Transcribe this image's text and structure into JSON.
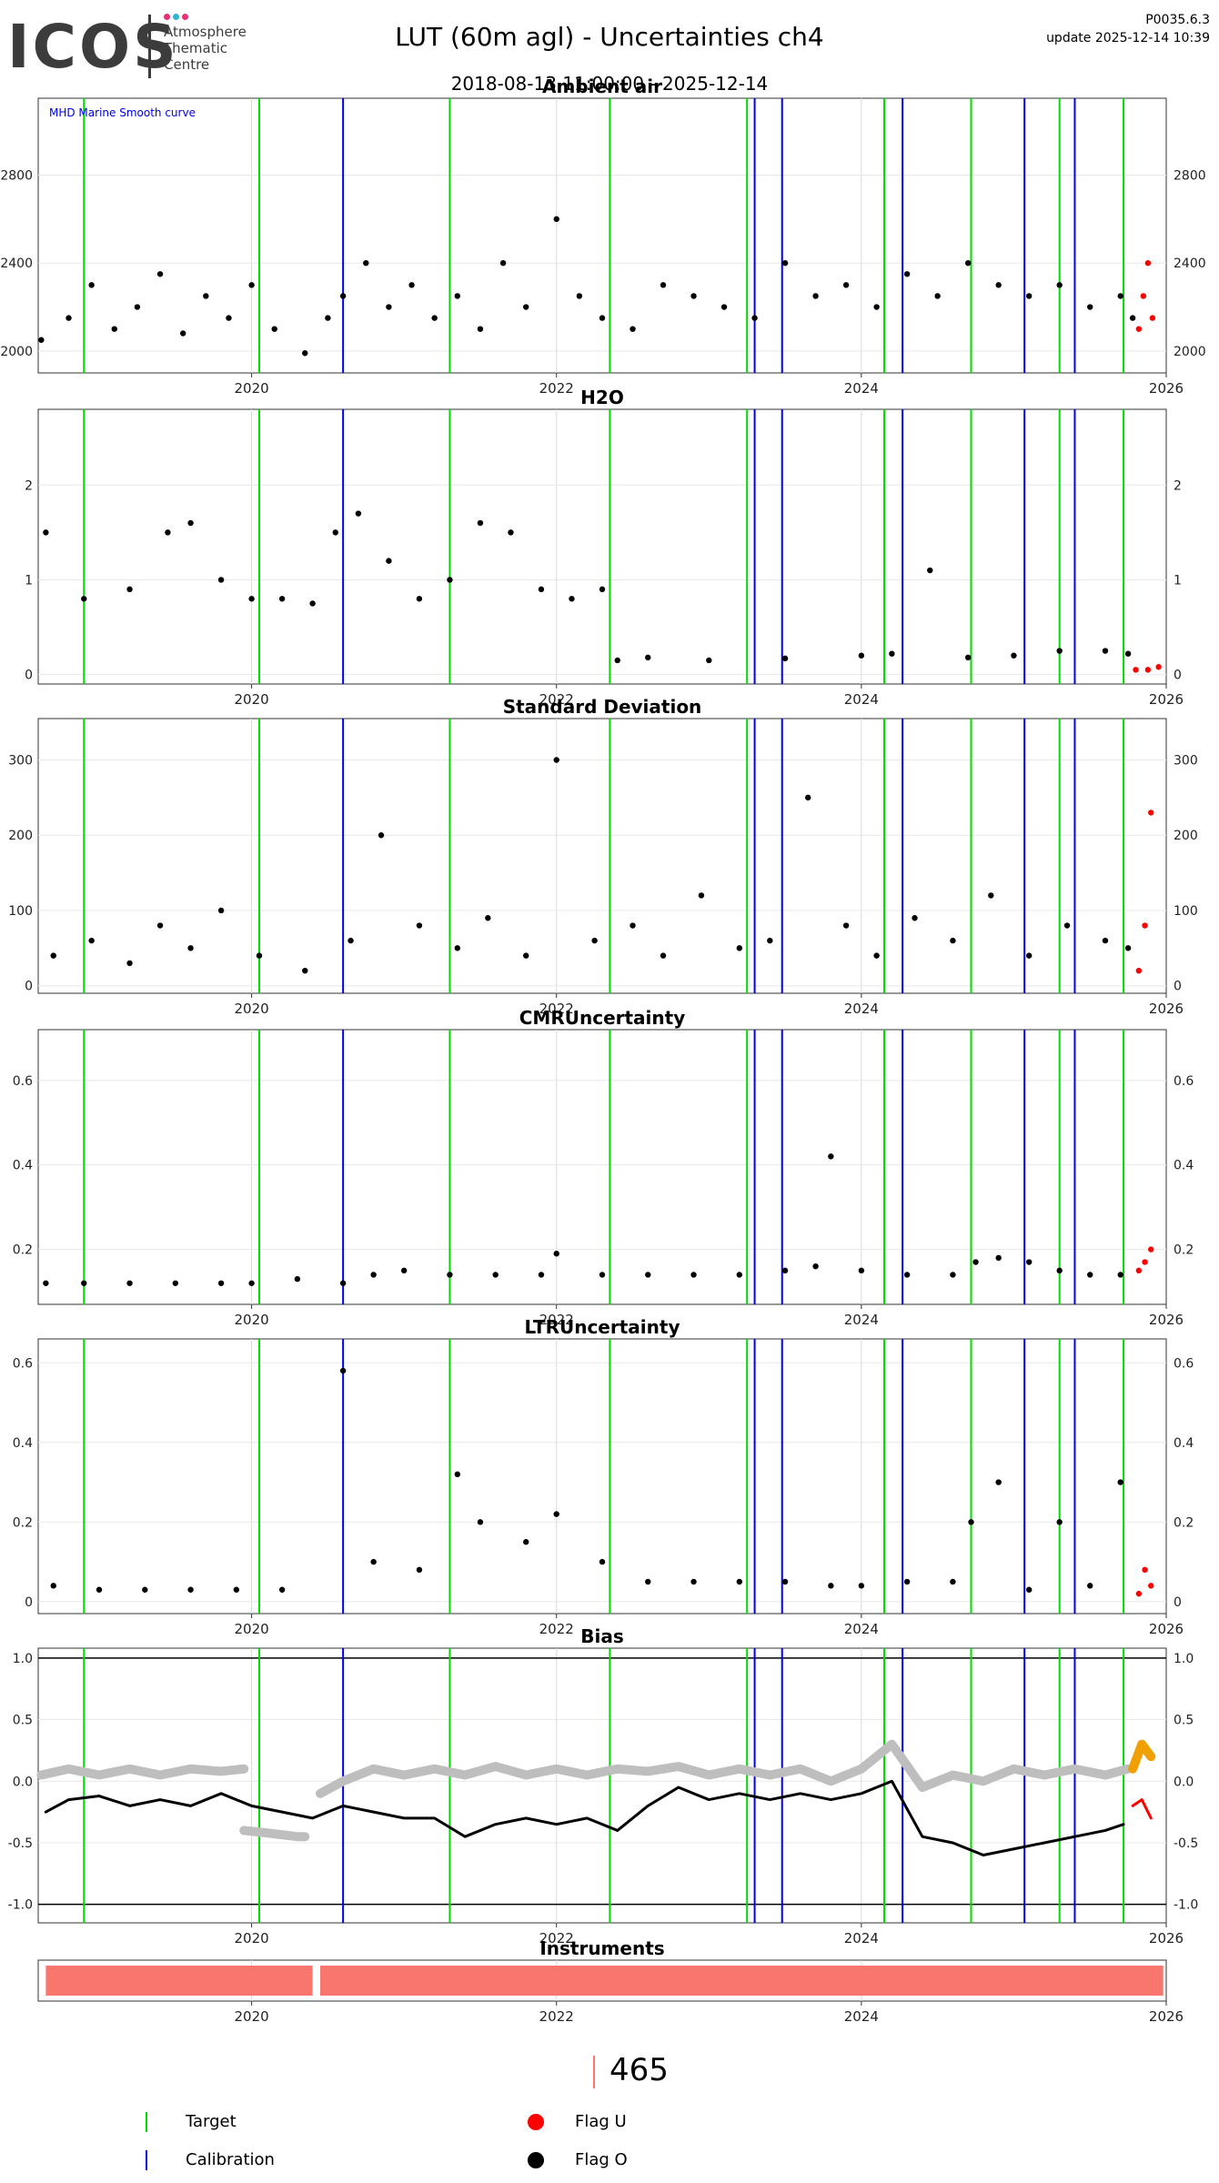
{
  "header": {
    "logo_text": "ICOS",
    "logo_sub": [
      "Atmosphere",
      "Thematic",
      "Centre"
    ],
    "logo_dot_colors": [
      "#e8317a",
      "#2fb5d2",
      "#e8317a"
    ],
    "title": "LUT  (60m agl) - Uncertainties ch4",
    "date_range": "2018-08-13 11:00:00 - 2025-12-14",
    "version": "P0035.6.3",
    "update": "update  2025-12-14 10:39"
  },
  "colors": {
    "target": "#00dd00",
    "calibration": "#0000ee",
    "flag_u": "#ff0000",
    "flag_o": "#000000",
    "smooth": "#bebebe",
    "smooth_recent": "#f0a000",
    "instrument": "#f8766d"
  },
  "events": {
    "target": [
      2018.9,
      2020.05,
      2021.3,
      2022.35,
      2023.25,
      2024.15,
      2024.72,
      2025.3,
      2025.72
    ],
    "calibration": [
      2020.6,
      2023.3,
      2023.48,
      2024.27,
      2025.07,
      2025.4
    ]
  },
  "chart_data": [
    {
      "type": "scatter",
      "title": "Ambient air",
      "annotation": "MHD Marine Smooth curve",
      "x_ticks": [
        2020,
        2022,
        2024,
        2026
      ],
      "y_ticks": [
        2000,
        2400,
        2800
      ],
      "xlim": [
        2018.6,
        2026.0
      ],
      "ylim": [
        1900,
        3150
      ],
      "right_axis": true,
      "series": [
        {
          "flag": "O",
          "x": [
            2018.62,
            2018.8,
            2018.95,
            2019.1,
            2019.25,
            2019.4,
            2019.55,
            2019.7,
            2019.85,
            2020.0,
            2020.15,
            2020.35,
            2020.5,
            2020.6,
            2020.75,
            2020.9,
            2021.05,
            2021.2,
            2021.35,
            2021.5,
            2021.65,
            2021.8,
            2022.0,
            2022.15,
            2022.3,
            2022.5,
            2022.7,
            2022.9,
            2023.1,
            2023.3,
            2023.5,
            2023.7,
            2023.9,
            2024.1,
            2024.3,
            2024.5,
            2024.7,
            2024.9,
            2025.1,
            2025.3,
            2025.5,
            2025.7,
            2025.78
          ],
          "y": [
            2050,
            2150,
            2300,
            2100,
            2200,
            2350,
            2080,
            2250,
            2150,
            2300,
            2100,
            1990,
            2150,
            2250,
            2400,
            2200,
            2300,
            2150,
            2250,
            2100,
            2400,
            2200,
            2600,
            2250,
            2150,
            2100,
            2300,
            2250,
            2200,
            2150,
            2400,
            2250,
            2300,
            2200,
            2350,
            2250,
            2400,
            2300,
            2250,
            2300,
            2200,
            2250,
            2150
          ]
        },
        {
          "flag": "U",
          "x": [
            2025.82,
            2025.85,
            2025.88,
            2025.91
          ],
          "y": [
            2100,
            2250,
            2400,
            2150
          ]
        }
      ]
    },
    {
      "type": "scatter",
      "title": "H2O",
      "x_ticks": [
        2020,
        2022,
        2024,
        2026
      ],
      "y_ticks": [
        0,
        1,
        2
      ],
      "xlim": [
        2018.6,
        2026.0
      ],
      "ylim": [
        -0.1,
        2.8
      ],
      "right_axis": true,
      "series": [
        {
          "flag": "O",
          "x": [
            2018.65,
            2018.9,
            2019.2,
            2019.45,
            2019.6,
            2019.8,
            2020.0,
            2020.2,
            2020.4,
            2020.55,
            2020.7,
            2020.9,
            2021.1,
            2021.3,
            2021.5,
            2021.7,
            2021.9,
            2022.1,
            2022.3,
            2022.4,
            2022.6,
            2023.0,
            2023.5,
            2024.0,
            2024.2,
            2024.45,
            2024.7,
            2025.0,
            2025.3,
            2025.6,
            2025.75
          ],
          "y": [
            1.5,
            0.8,
            0.9,
            1.5,
            1.6,
            1.0,
            0.8,
            0.8,
            0.75,
            1.5,
            1.7,
            1.2,
            0.8,
            1.0,
            1.6,
            1.5,
            0.9,
            0.8,
            0.9,
            0.15,
            0.18,
            0.15,
            0.17,
            0.2,
            0.22,
            1.1,
            0.18,
            0.2,
            0.25,
            0.25,
            0.22
          ]
        },
        {
          "flag": "U",
          "x": [
            2025.8,
            2025.88,
            2025.95
          ],
          "y": [
            0.05,
            0.05,
            0.08
          ]
        }
      ]
    },
    {
      "type": "scatter",
      "title": "Standard Deviation",
      "x_ticks": [
        2020,
        2022,
        2024,
        2026
      ],
      "y_ticks": [
        0,
        100,
        200,
        300
      ],
      "xlim": [
        2018.6,
        2026.0
      ],
      "ylim": [
        -10,
        355
      ],
      "right_axis": true,
      "series": [
        {
          "flag": "O",
          "x": [
            2018.7,
            2018.95,
            2019.2,
            2019.4,
            2019.6,
            2019.8,
            2020.05,
            2020.35,
            2020.65,
            2020.85,
            2021.1,
            2021.35,
            2021.55,
            2021.8,
            2022.0,
            2022.25,
            2022.5,
            2022.7,
            2022.95,
            2023.2,
            2023.4,
            2023.65,
            2023.9,
            2024.1,
            2024.35,
            2024.6,
            2024.85,
            2025.1,
            2025.35,
            2025.6,
            2025.75
          ],
          "y": [
            40,
            60,
            30,
            80,
            50,
            100,
            40,
            20,
            60,
            200,
            80,
            50,
            90,
            40,
            300,
            60,
            80,
            40,
            120,
            50,
            60,
            250,
            80,
            40,
            90,
            60,
            120,
            40,
            80,
            60,
            50
          ]
        },
        {
          "flag": "U",
          "x": [
            2025.82,
            2025.86,
            2025.9
          ],
          "y": [
            20,
            80,
            230
          ]
        }
      ]
    },
    {
      "type": "scatter",
      "title": "CMRUncertainty",
      "x_ticks": [
        2020,
        2022,
        2024,
        2026
      ],
      "y_ticks": [
        0.2,
        0.4,
        0.6
      ],
      "xlim": [
        2018.6,
        2026.0
      ],
      "ylim": [
        0.07,
        0.72
      ],
      "right_axis": true,
      "series": [
        {
          "flag": "O",
          "x": [
            2018.65,
            2018.9,
            2019.2,
            2019.5,
            2019.8,
            2020.0,
            2020.3,
            2020.6,
            2020.8,
            2021.0,
            2021.3,
            2021.6,
            2021.9,
            2022.0,
            2022.3,
            2022.6,
            2022.9,
            2023.2,
            2023.5,
            2023.7,
            2023.8,
            2024.0,
            2024.3,
            2024.6,
            2024.75,
            2024.9,
            2025.1,
            2025.3,
            2025.5,
            2025.7
          ],
          "y": [
            0.12,
            0.12,
            0.12,
            0.12,
            0.12,
            0.12,
            0.13,
            0.12,
            0.14,
            0.15,
            0.14,
            0.14,
            0.14,
            0.19,
            0.14,
            0.14,
            0.14,
            0.14,
            0.15,
            0.16,
            0.42,
            0.15,
            0.14,
            0.14,
            0.17,
            0.18,
            0.17,
            0.15,
            0.14,
            0.14
          ]
        },
        {
          "flag": "U",
          "x": [
            2025.82,
            2025.86,
            2025.9
          ],
          "y": [
            0.15,
            0.17,
            0.2
          ]
        }
      ]
    },
    {
      "type": "scatter",
      "title": "LTRUncertainty",
      "x_ticks": [
        2020,
        2022,
        2024,
        2026
      ],
      "y_ticks": [
        0.0,
        0.2,
        0.4,
        0.6
      ],
      "xlim": [
        2018.6,
        2026.0
      ],
      "ylim": [
        -0.03,
        0.66
      ],
      "right_axis": true,
      "series": [
        {
          "flag": "O",
          "x": [
            2018.7,
            2019.0,
            2019.3,
            2019.6,
            2019.9,
            2020.2,
            2020.6,
            2020.8,
            2021.1,
            2021.35,
            2021.5,
            2021.8,
            2022.0,
            2022.3,
            2022.6,
            2022.9,
            2023.2,
            2023.5,
            2023.8,
            2024.0,
            2024.3,
            2024.6,
            2024.72,
            2024.9,
            2025.1,
            2025.3,
            2025.5,
            2025.7
          ],
          "y": [
            0.04,
            0.03,
            0.03,
            0.03,
            0.03,
            0.03,
            0.58,
            0.1,
            0.08,
            0.32,
            0.2,
            0.15,
            0.22,
            0.1,
            0.05,
            0.05,
            0.05,
            0.05,
            0.04,
            0.04,
            0.05,
            0.05,
            0.2,
            0.3,
            0.03,
            0.2,
            0.04,
            0.3
          ]
        },
        {
          "flag": "U",
          "x": [
            2025.82,
            2025.86,
            2025.9
          ],
          "y": [
            0.02,
            0.08,
            0.04
          ]
        }
      ]
    },
    {
      "type": "line",
      "title": "Bias",
      "x_ticks": [
        2020,
        2022,
        2024,
        2026
      ],
      "y_ticks": [
        -1.0,
        -0.5,
        0.0,
        0.5,
        1.0
      ],
      "xlim": [
        2018.6,
        2026.0
      ],
      "ylim": [
        -1.15,
        1.08
      ],
      "right_axis": true,
      "hlines": [
        1.0,
        -1.0
      ],
      "series": [
        {
          "flag": "O",
          "x": [
            2018.65,
            2018.8,
            2019.0,
            2019.2,
            2019.4,
            2019.6,
            2019.8,
            2020.0,
            2020.2,
            2020.4,
            2020.6,
            2020.8,
            2021.0,
            2021.2,
            2021.4,
            2021.6,
            2021.8,
            2022.0,
            2022.2,
            2022.4,
            2022.6,
            2022.8,
            2023.0,
            2023.2,
            2023.4,
            2023.6,
            2023.8,
            2024.0,
            2024.2,
            2024.4,
            2024.6,
            2024.8,
            2025.0,
            2025.2,
            2025.4,
            2025.6,
            2025.72
          ],
          "y": [
            -0.25,
            -0.15,
            -0.12,
            -0.2,
            -0.15,
            -0.2,
            -0.1,
            -0.2,
            -0.25,
            -0.3,
            -0.2,
            -0.25,
            -0.3,
            -0.3,
            -0.45,
            -0.35,
            -0.3,
            -0.35,
            -0.3,
            -0.4,
            -0.2,
            -0.05,
            -0.15,
            -0.1,
            -0.15,
            -0.1,
            -0.15,
            -0.1,
            0.0,
            -0.45,
            -0.5,
            -0.6,
            -0.55,
            -0.5,
            -0.45,
            -0.4,
            -0.35
          ]
        },
        {
          "flag": "U",
          "x": [
            2025.78,
            2025.84,
            2025.9
          ],
          "y": [
            -0.2,
            -0.15,
            -0.3
          ]
        },
        {
          "flag": "smooth",
          "x": [
            2018.62,
            2018.8,
            2019.0,
            2019.2,
            2019.4,
            2019.6,
            2019.8,
            2019.95
          ],
          "y": [
            0.05,
            0.1,
            0.05,
            0.1,
            0.05,
            0.1,
            0.08,
            0.1
          ]
        },
        {
          "flag": "smooth",
          "x": [
            2019.95,
            2020.1,
            2020.3,
            2020.35
          ],
          "y": [
            -0.4,
            -0.42,
            -0.45,
            -0.45
          ]
        },
        {
          "flag": "smooth",
          "x": [
            2020.45,
            2020.6,
            2020.8,
            2021.0,
            2021.2,
            2021.4,
            2021.6,
            2021.8,
            2022.0,
            2022.2,
            2022.4,
            2022.6,
            2022.8,
            2023.0,
            2023.2,
            2023.4,
            2023.6,
            2023.8,
            2024.0,
            2024.2,
            2024.4,
            2024.6,
            2024.8,
            2025.0,
            2025.2,
            2025.4,
            2025.6,
            2025.75
          ],
          "y": [
            -0.1,
            0.0,
            0.1,
            0.05,
            0.1,
            0.05,
            0.12,
            0.05,
            0.1,
            0.05,
            0.1,
            0.08,
            0.12,
            0.05,
            0.1,
            0.05,
            0.1,
            0.0,
            0.1,
            0.3,
            -0.05,
            0.05,
            0.0,
            0.1,
            0.05,
            0.1,
            0.05,
            0.1
          ]
        },
        {
          "flag": "smooth_recent",
          "x": [
            2025.78,
            2025.84,
            2025.9
          ],
          "y": [
            0.1,
            0.3,
            0.2
          ]
        }
      ]
    },
    {
      "type": "bar",
      "title": "Instruments",
      "x_ticks": [
        2020,
        2022,
        2024,
        2026
      ],
      "xlim": [
        2018.6,
        2026.0
      ],
      "segments": [
        [
          2018.65,
          2020.4
        ],
        [
          2020.45,
          2025.98
        ]
      ]
    }
  ],
  "bottom": {
    "count": "465"
  },
  "legend": {
    "target": "Target",
    "calibration": "Calibration",
    "flag_u": "Flag U",
    "flag_o": "Flag O"
  }
}
